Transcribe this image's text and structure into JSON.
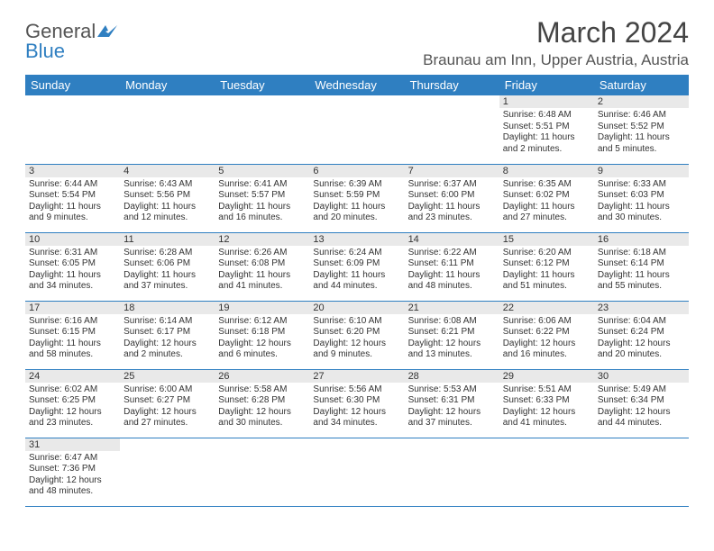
{
  "brand": {
    "name_part1": "General",
    "name_part2": "Blue",
    "color_primary": "#2f7fc1",
    "color_text": "#555555"
  },
  "header": {
    "title": "March 2024",
    "location": "Braunau am Inn, Upper Austria, Austria"
  },
  "calendar": {
    "background_color": "#ffffff",
    "header_bg": "#2f7fc1",
    "header_fg": "#ffffff",
    "daynum_bg": "#e9e9e9",
    "row_border_color": "#2f7fc1",
    "font_size_cell": 10,
    "weekdays": [
      "Sunday",
      "Monday",
      "Tuesday",
      "Wednesday",
      "Thursday",
      "Friday",
      "Saturday"
    ],
    "weeks": [
      [
        {
          "empty": true
        },
        {
          "empty": true
        },
        {
          "empty": true
        },
        {
          "empty": true
        },
        {
          "empty": true
        },
        {
          "day": "1",
          "sunrise": "Sunrise: 6:48 AM",
          "sunset": "Sunset: 5:51 PM",
          "daylight": "Daylight: 11 hours and 2 minutes."
        },
        {
          "day": "2",
          "sunrise": "Sunrise: 6:46 AM",
          "sunset": "Sunset: 5:52 PM",
          "daylight": "Daylight: 11 hours and 5 minutes."
        }
      ],
      [
        {
          "day": "3",
          "sunrise": "Sunrise: 6:44 AM",
          "sunset": "Sunset: 5:54 PM",
          "daylight": "Daylight: 11 hours and 9 minutes."
        },
        {
          "day": "4",
          "sunrise": "Sunrise: 6:43 AM",
          "sunset": "Sunset: 5:56 PM",
          "daylight": "Daylight: 11 hours and 12 minutes."
        },
        {
          "day": "5",
          "sunrise": "Sunrise: 6:41 AM",
          "sunset": "Sunset: 5:57 PM",
          "daylight": "Daylight: 11 hours and 16 minutes."
        },
        {
          "day": "6",
          "sunrise": "Sunrise: 6:39 AM",
          "sunset": "Sunset: 5:59 PM",
          "daylight": "Daylight: 11 hours and 20 minutes."
        },
        {
          "day": "7",
          "sunrise": "Sunrise: 6:37 AM",
          "sunset": "Sunset: 6:00 PM",
          "daylight": "Daylight: 11 hours and 23 minutes."
        },
        {
          "day": "8",
          "sunrise": "Sunrise: 6:35 AM",
          "sunset": "Sunset: 6:02 PM",
          "daylight": "Daylight: 11 hours and 27 minutes."
        },
        {
          "day": "9",
          "sunrise": "Sunrise: 6:33 AM",
          "sunset": "Sunset: 6:03 PM",
          "daylight": "Daylight: 11 hours and 30 minutes."
        }
      ],
      [
        {
          "day": "10",
          "sunrise": "Sunrise: 6:31 AM",
          "sunset": "Sunset: 6:05 PM",
          "daylight": "Daylight: 11 hours and 34 minutes."
        },
        {
          "day": "11",
          "sunrise": "Sunrise: 6:28 AM",
          "sunset": "Sunset: 6:06 PM",
          "daylight": "Daylight: 11 hours and 37 minutes."
        },
        {
          "day": "12",
          "sunrise": "Sunrise: 6:26 AM",
          "sunset": "Sunset: 6:08 PM",
          "daylight": "Daylight: 11 hours and 41 minutes."
        },
        {
          "day": "13",
          "sunrise": "Sunrise: 6:24 AM",
          "sunset": "Sunset: 6:09 PM",
          "daylight": "Daylight: 11 hours and 44 minutes."
        },
        {
          "day": "14",
          "sunrise": "Sunrise: 6:22 AM",
          "sunset": "Sunset: 6:11 PM",
          "daylight": "Daylight: 11 hours and 48 minutes."
        },
        {
          "day": "15",
          "sunrise": "Sunrise: 6:20 AM",
          "sunset": "Sunset: 6:12 PM",
          "daylight": "Daylight: 11 hours and 51 minutes."
        },
        {
          "day": "16",
          "sunrise": "Sunrise: 6:18 AM",
          "sunset": "Sunset: 6:14 PM",
          "daylight": "Daylight: 11 hours and 55 minutes."
        }
      ],
      [
        {
          "day": "17",
          "sunrise": "Sunrise: 6:16 AM",
          "sunset": "Sunset: 6:15 PM",
          "daylight": "Daylight: 11 hours and 58 minutes."
        },
        {
          "day": "18",
          "sunrise": "Sunrise: 6:14 AM",
          "sunset": "Sunset: 6:17 PM",
          "daylight": "Daylight: 12 hours and 2 minutes."
        },
        {
          "day": "19",
          "sunrise": "Sunrise: 6:12 AM",
          "sunset": "Sunset: 6:18 PM",
          "daylight": "Daylight: 12 hours and 6 minutes."
        },
        {
          "day": "20",
          "sunrise": "Sunrise: 6:10 AM",
          "sunset": "Sunset: 6:20 PM",
          "daylight": "Daylight: 12 hours and 9 minutes."
        },
        {
          "day": "21",
          "sunrise": "Sunrise: 6:08 AM",
          "sunset": "Sunset: 6:21 PM",
          "daylight": "Daylight: 12 hours and 13 minutes."
        },
        {
          "day": "22",
          "sunrise": "Sunrise: 6:06 AM",
          "sunset": "Sunset: 6:22 PM",
          "daylight": "Daylight: 12 hours and 16 minutes."
        },
        {
          "day": "23",
          "sunrise": "Sunrise: 6:04 AM",
          "sunset": "Sunset: 6:24 PM",
          "daylight": "Daylight: 12 hours and 20 minutes."
        }
      ],
      [
        {
          "day": "24",
          "sunrise": "Sunrise: 6:02 AM",
          "sunset": "Sunset: 6:25 PM",
          "daylight": "Daylight: 12 hours and 23 minutes."
        },
        {
          "day": "25",
          "sunrise": "Sunrise: 6:00 AM",
          "sunset": "Sunset: 6:27 PM",
          "daylight": "Daylight: 12 hours and 27 minutes."
        },
        {
          "day": "26",
          "sunrise": "Sunrise: 5:58 AM",
          "sunset": "Sunset: 6:28 PM",
          "daylight": "Daylight: 12 hours and 30 minutes."
        },
        {
          "day": "27",
          "sunrise": "Sunrise: 5:56 AM",
          "sunset": "Sunset: 6:30 PM",
          "daylight": "Daylight: 12 hours and 34 minutes."
        },
        {
          "day": "28",
          "sunrise": "Sunrise: 5:53 AM",
          "sunset": "Sunset: 6:31 PM",
          "daylight": "Daylight: 12 hours and 37 minutes."
        },
        {
          "day": "29",
          "sunrise": "Sunrise: 5:51 AM",
          "sunset": "Sunset: 6:33 PM",
          "daylight": "Daylight: 12 hours and 41 minutes."
        },
        {
          "day": "30",
          "sunrise": "Sunrise: 5:49 AM",
          "sunset": "Sunset: 6:34 PM",
          "daylight": "Daylight: 12 hours and 44 minutes."
        }
      ],
      [
        {
          "day": "31",
          "sunrise": "Sunrise: 6:47 AM",
          "sunset": "Sunset: 7:36 PM",
          "daylight": "Daylight: 12 hours and 48 minutes."
        },
        {
          "empty": true
        },
        {
          "empty": true
        },
        {
          "empty": true
        },
        {
          "empty": true
        },
        {
          "empty": true
        },
        {
          "empty": true
        }
      ]
    ]
  }
}
